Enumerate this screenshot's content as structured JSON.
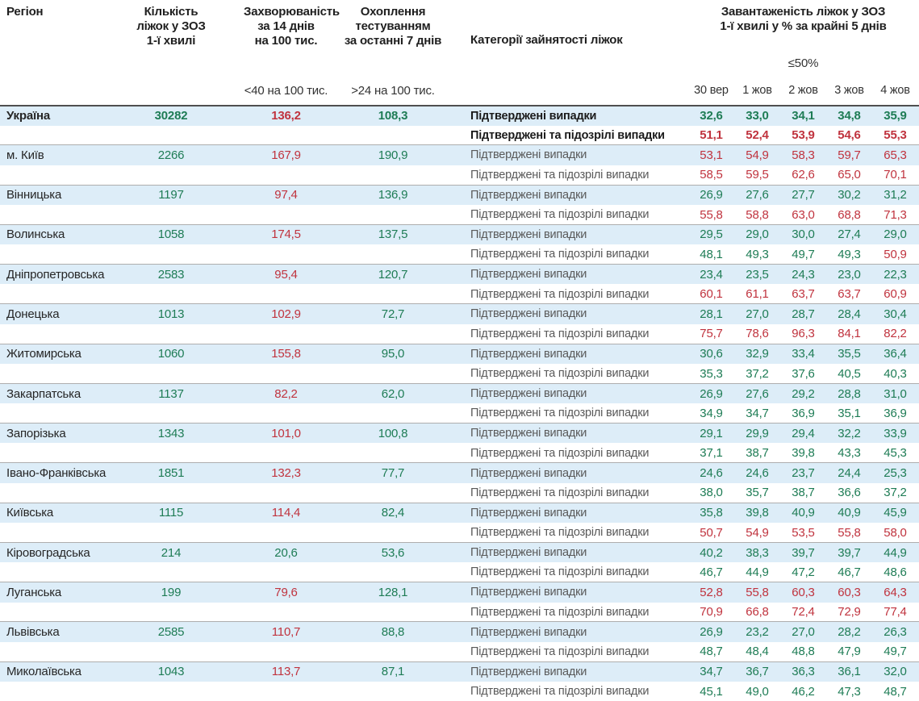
{
  "header": {
    "col_region": "Регіон",
    "col_beds": "Кількість\nліжок у ЗОЗ\n1-ї хвилі",
    "col_incidence": "Захворюваність\nза 14 днів\nна 100 тис.",
    "col_testing": "Охоплення\nтестуванням\nза останні 7 днів",
    "col_categories": "Категорії зайнятості ліжок",
    "col_occupancy": "Завантаженість ліжок у ЗОЗ\n1-ї хвилі у % за крайні 5 днів",
    "incidence_criteria": "<40 на 100 тис.",
    "testing_criteria": ">24 на 100 тис.",
    "occupancy_threshold": "≤50%",
    "dates": [
      "30 вер",
      "1 жов",
      "2 жов",
      "3 жов",
      "4 жов"
    ]
  },
  "labels": {
    "confirmed": "Підтверджені випадки",
    "confirmed_suspected": "Підтверджені та підозрілі випадки"
  },
  "colors": {
    "green": "#1e7c55",
    "red": "#c0333e",
    "row_highlight": "#ddedf8"
  },
  "thresholds": {
    "incidence_green_below": 40,
    "testing_green_above": 24,
    "occupancy_green_max": 50
  },
  "rows": [
    {
      "region": "Україна",
      "bold": true,
      "beds": "30282",
      "incidence": "136,2",
      "testing": "108,3",
      "confirmed": [
        "32,6",
        "33,0",
        "34,1",
        "34,8",
        "35,9"
      ],
      "suspected": [
        "51,1",
        "52,4",
        "53,9",
        "54,6",
        "55,3"
      ]
    },
    {
      "region": "м. Київ",
      "bold": false,
      "beds": "2266",
      "incidence": "167,9",
      "testing": "190,9",
      "confirmed": [
        "53,1",
        "54,9",
        "58,3",
        "59,7",
        "65,3"
      ],
      "suspected": [
        "58,5",
        "59,5",
        "62,6",
        "65,0",
        "70,1"
      ]
    },
    {
      "region": "Вінницька",
      "bold": false,
      "beds": "1197",
      "incidence": "97,4",
      "testing": "136,9",
      "confirmed": [
        "26,9",
        "27,6",
        "27,7",
        "30,2",
        "31,2"
      ],
      "suspected": [
        "55,8",
        "58,8",
        "63,0",
        "68,8",
        "71,3"
      ]
    },
    {
      "region": "Волинська",
      "bold": false,
      "beds": "1058",
      "incidence": "174,5",
      "testing": "137,5",
      "confirmed": [
        "29,5",
        "29,0",
        "30,0",
        "27,4",
        "29,0"
      ],
      "suspected": [
        "48,1",
        "49,3",
        "49,7",
        "49,3",
        "50,9"
      ]
    },
    {
      "region": "Дніпропетровська",
      "bold": false,
      "beds": "2583",
      "incidence": "95,4",
      "testing": "120,7",
      "confirmed": [
        "23,4",
        "23,5",
        "24,3",
        "23,0",
        "22,3"
      ],
      "suspected": [
        "60,1",
        "61,1",
        "63,7",
        "63,7",
        "60,9"
      ]
    },
    {
      "region": "Донецька",
      "bold": false,
      "beds": "1013",
      "incidence": "102,9",
      "testing": "72,7",
      "confirmed": [
        "28,1",
        "27,0",
        "28,7",
        "28,4",
        "30,4"
      ],
      "suspected": [
        "75,7",
        "78,6",
        "96,3",
        "84,1",
        "82,2"
      ]
    },
    {
      "region": "Житомирська",
      "bold": false,
      "beds": "1060",
      "incidence": "155,8",
      "testing": "95,0",
      "confirmed": [
        "30,6",
        "32,9",
        "33,4",
        "35,5",
        "36,4"
      ],
      "suspected": [
        "35,3",
        "37,2",
        "37,6",
        "40,5",
        "40,3"
      ]
    },
    {
      "region": "Закарпатська",
      "bold": false,
      "beds": "1137",
      "incidence": "82,2",
      "testing": "62,0",
      "confirmed": [
        "26,9",
        "27,6",
        "29,2",
        "28,8",
        "31,0"
      ],
      "suspected": [
        "34,9",
        "34,7",
        "36,9",
        "35,1",
        "36,9"
      ]
    },
    {
      "region": "Запорізька",
      "bold": false,
      "beds": "1343",
      "incidence": "101,0",
      "testing": "100,8",
      "confirmed": [
        "29,1",
        "29,9",
        "29,4",
        "32,2",
        "33,9"
      ],
      "suspected": [
        "37,1",
        "38,7",
        "39,8",
        "43,3",
        "45,3"
      ]
    },
    {
      "region": "Івано-Франківська",
      "bold": false,
      "beds": "1851",
      "incidence": "132,3",
      "testing": "77,7",
      "confirmed": [
        "24,6",
        "24,6",
        "23,7",
        "24,4",
        "25,3"
      ],
      "suspected": [
        "38,0",
        "35,7",
        "38,7",
        "36,6",
        "37,2"
      ]
    },
    {
      "region": "Київська",
      "bold": false,
      "beds": "1115",
      "incidence": "114,4",
      "testing": "82,4",
      "confirmed": [
        "35,8",
        "39,8",
        "40,9",
        "40,9",
        "45,9"
      ],
      "suspected": [
        "50,7",
        "54,9",
        "53,5",
        "55,8",
        "58,0"
      ]
    },
    {
      "region": "Кіровоградська",
      "bold": false,
      "beds": "214",
      "incidence": "20,6",
      "testing": "53,6",
      "confirmed": [
        "40,2",
        "38,3",
        "39,7",
        "39,7",
        "44,9"
      ],
      "suspected": [
        "46,7",
        "44,9",
        "47,2",
        "46,7",
        "48,6"
      ]
    },
    {
      "region": "Луганська",
      "bold": false,
      "beds": "199",
      "incidence": "79,6",
      "testing": "128,1",
      "confirmed": [
        "52,8",
        "55,8",
        "60,3",
        "60,3",
        "64,3"
      ],
      "suspected": [
        "70,9",
        "66,8",
        "72,4",
        "72,9",
        "77,4"
      ]
    },
    {
      "region": "Львівська",
      "bold": false,
      "beds": "2585",
      "incidence": "110,7",
      "testing": "88,8",
      "confirmed": [
        "26,9",
        "23,2",
        "27,0",
        "28,2",
        "26,3"
      ],
      "suspected": [
        "48,7",
        "48,4",
        "48,8",
        "47,9",
        "49,7"
      ]
    },
    {
      "region": "Миколаївська",
      "bold": false,
      "beds": "1043",
      "incidence": "113,7",
      "testing": "87,1",
      "confirmed": [
        "34,7",
        "36,7",
        "36,3",
        "36,1",
        "32,0"
      ],
      "suspected": [
        "45,1",
        "49,0",
        "46,2",
        "47,3",
        "48,7"
      ]
    }
  ]
}
